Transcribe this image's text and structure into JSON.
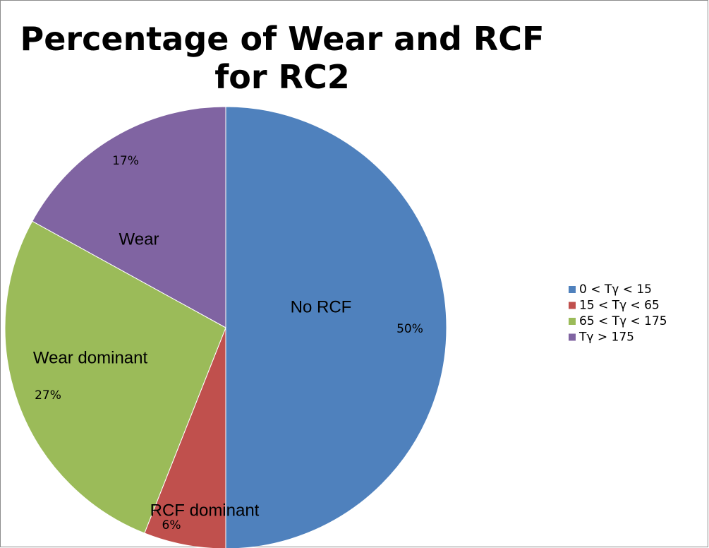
{
  "chart_data": {
    "type": "pie",
    "title": "Percentage of Wear and RCF for RC2",
    "categories": [
      "0 < Tγ < 15",
      "15 < Tγ < 65",
      "65 < Tγ < 175",
      "Tγ > 175"
    ],
    "values": [
      50,
      6,
      27,
      17
    ],
    "value_labels": [
      "50%",
      "6%",
      "27%",
      "17%"
    ],
    "annotations": [
      "No RCF",
      "RCF dominant",
      "Wear dominant",
      "Wear"
    ],
    "colors": [
      "#4f81bd",
      "#c0504d",
      "#9bbb59",
      "#8064a2"
    ],
    "legend": "right"
  }
}
